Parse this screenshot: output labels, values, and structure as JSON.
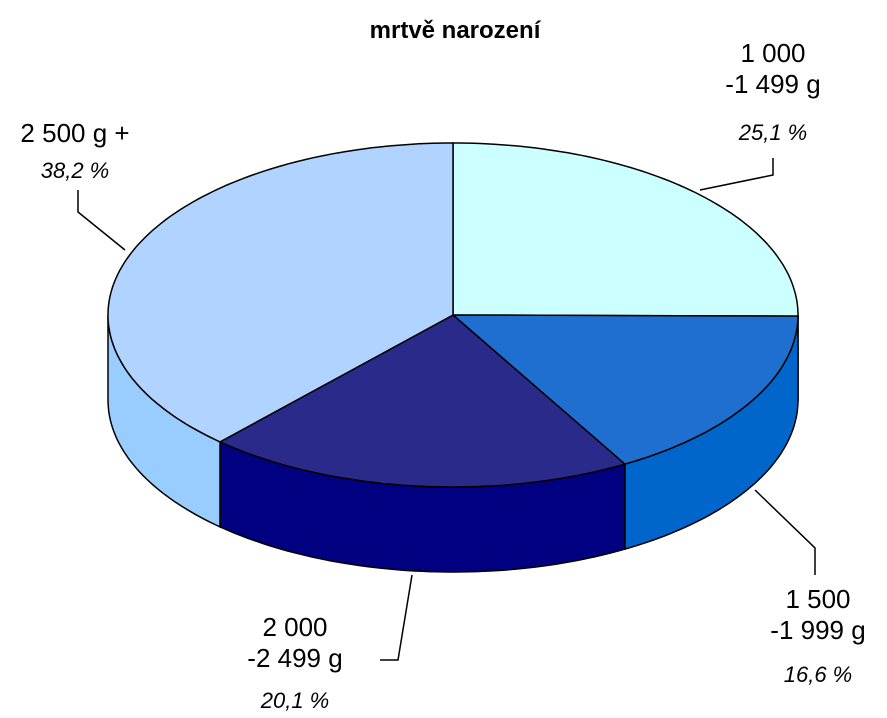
{
  "chart_data": {
    "type": "pie3d",
    "title": "mrtvě narození",
    "categories": [
      "1 000\n-1 499 g",
      "1 500\n-1 999 g",
      "2 000\n-2 499 g",
      "2 500 g +"
    ],
    "values": [
      25.1,
      16.6,
      20.1,
      38.2
    ],
    "value_labels": [
      "25,1 %",
      "16,6 %",
      "20,1 %",
      "38,2 %"
    ],
    "colors": [
      "#ccffff",
      "#1f6fd0",
      "#2a2a8a",
      "#b0d4ff"
    ],
    "side_colors": [
      "#aadddd",
      "#0066cc",
      "#000080",
      "#99ccff"
    ]
  }
}
